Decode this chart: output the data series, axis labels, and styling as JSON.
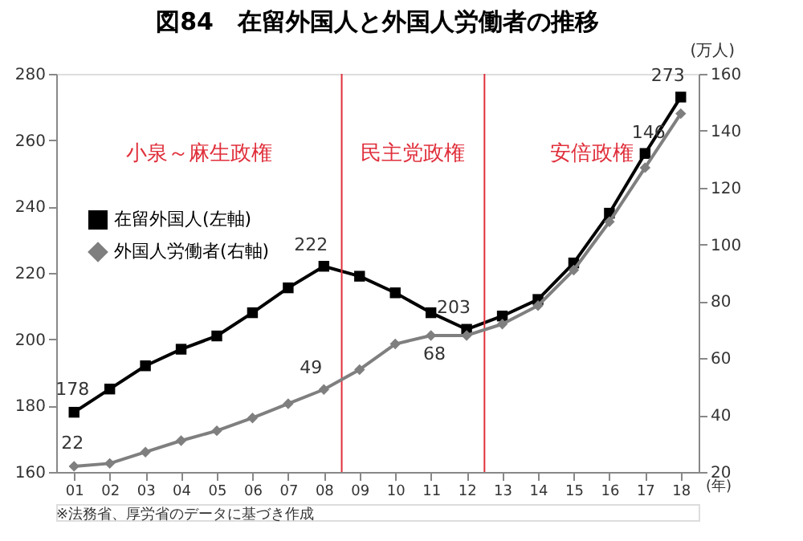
{
  "chart_data": {
    "type": "line",
    "title": "図84　在留外国人と外国人労働者の推移",
    "x": [
      1,
      2,
      3,
      4,
      5,
      6,
      7,
      8,
      9,
      10,
      11,
      12,
      13,
      14,
      15,
      16,
      17,
      18
    ],
    "xlim": [
      0.5,
      18.5
    ],
    "xticks": [
      {
        "value": 1,
        "label": "01"
      },
      {
        "value": 2,
        "label": "02"
      },
      {
        "value": 3,
        "label": "03"
      },
      {
        "value": 4,
        "label": "04"
      },
      {
        "value": 5,
        "label": "05"
      },
      {
        "value": 6,
        "label": "06"
      },
      {
        "value": 7,
        "label": "07"
      },
      {
        "value": 8,
        "label": "08"
      },
      {
        "value": 9,
        "label": "09"
      },
      {
        "value": 10,
        "label": "10"
      },
      {
        "value": 11,
        "label": "11"
      },
      {
        "value": 12,
        "label": "12"
      },
      {
        "value": 13,
        "label": "13"
      },
      {
        "value": 14,
        "label": "14"
      },
      {
        "value": 15,
        "label": "15"
      },
      {
        "value": 16,
        "label": "16"
      },
      {
        "value": 17,
        "label": "17"
      },
      {
        "value": 18,
        "label": "18"
      }
    ],
    "xlabel": "(年)",
    "y2label": "(万人)",
    "ylim": [
      160,
      280
    ],
    "yticks": [
      160,
      180,
      200,
      220,
      240,
      260,
      280
    ],
    "y2lim": [
      20,
      160
    ],
    "y2ticks": [
      20,
      40,
      60,
      80,
      100,
      120,
      140,
      160
    ],
    "series": [
      {
        "name": "在留外国人(左軸)",
        "color": "#000000",
        "marker": "square",
        "values": [
          178,
          185,
          192,
          197,
          201,
          208,
          215.5,
          222,
          219,
          214,
          208,
          203,
          207,
          212,
          223,
          238,
          256,
          273
        ],
        "value_labels": [
          "178",
          null,
          null,
          null,
          null,
          null,
          null,
          "222",
          null,
          null,
          null,
          "203",
          null,
          null,
          null,
          null,
          null,
          "273"
        ]
      },
      {
        "name": "外国人労働者(右軸)",
        "color": "#7f7f7f",
        "marker": "diamond",
        "axis": "y2",
        "values": [
          22,
          23,
          27,
          31,
          34.5,
          39,
          44,
          49,
          56,
          65,
          68,
          68,
          72,
          78.5,
          91,
          108,
          127,
          146
        ],
        "value_labels": [
          "22",
          null,
          null,
          null,
          null,
          null,
          null,
          "49",
          null,
          null,
          null,
          "68",
          null,
          null,
          null,
          null,
          null,
          "146"
        ]
      }
    ],
    "ref_lines": [
      {
        "axis": "x",
        "value": 8.5,
        "color": "#e0303c"
      },
      {
        "axis": "x",
        "value": 12.5,
        "color": "#e0303c"
      }
    ],
    "annotations": [
      "小泉～麻生政権",
      "民主党政権",
      "安倍政権",
      "※法務省、厚労省のデータに基づき作成"
    ],
    "legend": "left",
    "grid": false,
    "line_style": "solid"
  }
}
